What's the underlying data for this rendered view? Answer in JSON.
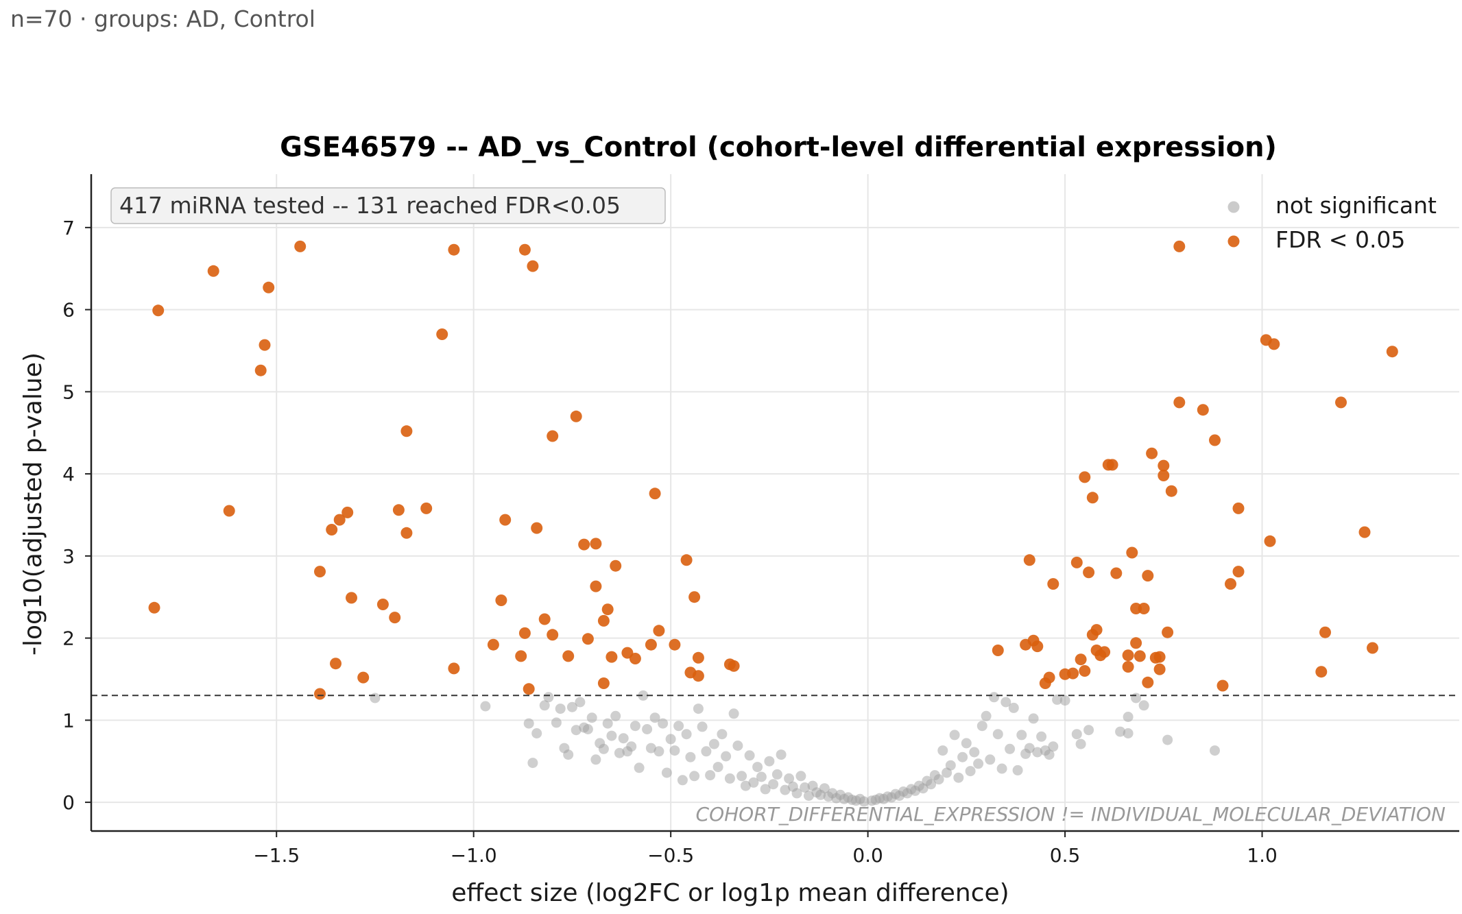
{
  "header": {
    "subtitle": "n=70 · groups: AD, Control"
  },
  "chart_data": {
    "type": "scatter",
    "title": "GSE46579 -- AD_vs_Control (cohort-level differential expression)",
    "xlabel": "effect size (log2FC or log1p mean difference)",
    "ylabel": "-log10(adjusted p-value)",
    "xlim": [
      -1.97,
      1.5
    ],
    "ylim": [
      -0.35,
      7.65
    ],
    "x_ticks": [
      -1.5,
      -1.0,
      -0.5,
      0.0,
      0.5,
      1.0
    ],
    "x_tick_labels": [
      "−1.5",
      "−1.0",
      "−0.5",
      "0.0",
      "0.5",
      "1.0"
    ],
    "y_ticks": [
      0,
      1,
      2,
      3,
      4,
      5,
      6,
      7
    ],
    "y_tick_labels": [
      "0",
      "1",
      "2",
      "3",
      "4",
      "5",
      "6",
      "7"
    ],
    "grid": true,
    "threshold_line": {
      "y": 1.301,
      "style": "dashed"
    },
    "annotation_box": "417 miRNA tested -- 131 reached FDR<0.05",
    "watermark": "COHORT_DIFFERENTIAL_EXPRESSION != INDIVIDUAL_MOLECULAR_DEVIATION",
    "legend": {
      "position": "top-right"
    },
    "series": [
      {
        "name": "not significant",
        "color": "#a0a0a0",
        "points": [
          [
            -1.25,
            1.27
          ],
          [
            -0.97,
            1.17
          ],
          [
            -0.86,
            0.96
          ],
          [
            -0.85,
            0.48
          ],
          [
            -0.84,
            0.84
          ],
          [
            -0.82,
            1.18
          ],
          [
            -0.81,
            1.28
          ],
          [
            -0.79,
            0.97
          ],
          [
            -0.78,
            1.14
          ],
          [
            -0.77,
            0.66
          ],
          [
            -0.76,
            0.58
          ],
          [
            -0.75,
            1.16
          ],
          [
            -0.74,
            0.88
          ],
          [
            -0.73,
            1.22
          ],
          [
            -0.72,
            0.91
          ],
          [
            -0.71,
            0.89
          ],
          [
            -0.7,
            1.03
          ],
          [
            -0.69,
            0.52
          ],
          [
            -0.68,
            0.72
          ],
          [
            -0.67,
            0.65
          ],
          [
            -0.66,
            0.96
          ],
          [
            -0.65,
            0.81
          ],
          [
            -0.64,
            1.05
          ],
          [
            -0.63,
            0.6
          ],
          [
            -0.62,
            0.78
          ],
          [
            -0.61,
            0.62
          ],
          [
            -0.6,
            0.68
          ],
          [
            -0.59,
            0.93
          ],
          [
            -0.58,
            0.42
          ],
          [
            -0.57,
            1.3
          ],
          [
            -0.56,
            0.89
          ],
          [
            -0.55,
            0.66
          ],
          [
            -0.54,
            1.03
          ],
          [
            -0.53,
            0.62
          ],
          [
            -0.52,
            0.96
          ],
          [
            -0.51,
            0.36
          ],
          [
            -0.5,
            0.77
          ],
          [
            -0.49,
            0.63
          ],
          [
            -0.48,
            0.93
          ],
          [
            -0.47,
            0.27
          ],
          [
            -0.46,
            0.83
          ],
          [
            -0.45,
            0.55
          ],
          [
            -0.44,
            0.32
          ],
          [
            -0.43,
            1.14
          ],
          [
            -0.42,
            0.92
          ],
          [
            -0.41,
            0.62
          ],
          [
            -0.4,
            0.33
          ],
          [
            -0.39,
            0.71
          ],
          [
            -0.38,
            0.43
          ],
          [
            -0.37,
            0.83
          ],
          [
            -0.36,
            0.56
          ],
          [
            -0.35,
            0.29
          ],
          [
            -0.34,
            1.08
          ],
          [
            -0.33,
            0.69
          ],
          [
            -0.32,
            0.32
          ],
          [
            -0.31,
            0.2
          ],
          [
            -0.3,
            0.57
          ],
          [
            -0.29,
            0.24
          ],
          [
            -0.28,
            0.43
          ],
          [
            -0.27,
            0.31
          ],
          [
            -0.26,
            0.16
          ],
          [
            -0.25,
            0.5
          ],
          [
            -0.24,
            0.22
          ],
          [
            -0.23,
            0.34
          ],
          [
            -0.22,
            0.58
          ],
          [
            -0.21,
            0.15
          ],
          [
            -0.2,
            0.29
          ],
          [
            -0.19,
            0.19
          ],
          [
            -0.18,
            0.11
          ],
          [
            -0.17,
            0.32
          ],
          [
            -0.16,
            0.18
          ],
          [
            -0.15,
            0.08
          ],
          [
            -0.14,
            0.2
          ],
          [
            -0.13,
            0.12
          ],
          [
            -0.12,
            0.09
          ],
          [
            -0.11,
            0.17
          ],
          [
            -0.1,
            0.07
          ],
          [
            -0.09,
            0.11
          ],
          [
            -0.08,
            0.05
          ],
          [
            -0.07,
            0.09
          ],
          [
            -0.06,
            0.04
          ],
          [
            -0.05,
            0.06
          ],
          [
            -0.04,
            0.03
          ],
          [
            -0.03,
            0.02
          ],
          [
            -0.02,
            0.04
          ],
          [
            -0.01,
            0.01
          ],
          [
            0.01,
            0.02
          ],
          [
            0.02,
            0.03
          ],
          [
            0.03,
            0.05
          ],
          [
            0.04,
            0.04
          ],
          [
            0.05,
            0.07
          ],
          [
            0.06,
            0.06
          ],
          [
            0.07,
            0.1
          ],
          [
            0.08,
            0.08
          ],
          [
            0.09,
            0.13
          ],
          [
            0.1,
            0.11
          ],
          [
            0.11,
            0.16
          ],
          [
            0.12,
            0.14
          ],
          [
            0.13,
            0.2
          ],
          [
            0.14,
            0.17
          ],
          [
            0.15,
            0.26
          ],
          [
            0.16,
            0.22
          ],
          [
            0.17,
            0.33
          ],
          [
            0.18,
            0.28
          ],
          [
            0.19,
            0.63
          ],
          [
            0.2,
            0.36
          ],
          [
            0.21,
            0.45
          ],
          [
            0.22,
            0.82
          ],
          [
            0.23,
            0.3
          ],
          [
            0.24,
            0.55
          ],
          [
            0.25,
            0.72
          ],
          [
            0.26,
            0.38
          ],
          [
            0.27,
            0.61
          ],
          [
            0.28,
            0.47
          ],
          [
            0.29,
            0.93
          ],
          [
            0.3,
            1.05
          ],
          [
            0.31,
            0.52
          ],
          [
            0.32,
            1.28
          ],
          [
            0.33,
            0.83
          ],
          [
            0.34,
            0.41
          ],
          [
            0.35,
            1.22
          ],
          [
            0.36,
            0.65
          ],
          [
            0.37,
            1.15
          ],
          [
            0.38,
            0.39
          ],
          [
            0.39,
            0.82
          ],
          [
            0.4,
            0.59
          ],
          [
            0.41,
            0.66
          ],
          [
            0.42,
            1.02
          ],
          [
            0.43,
            0.61
          ],
          [
            0.44,
            0.8
          ],
          [
            0.45,
            0.63
          ],
          [
            0.46,
            0.58
          ],
          [
            0.47,
            0.68
          ],
          [
            0.48,
            1.25
          ],
          [
            0.5,
            1.24
          ],
          [
            0.53,
            0.83
          ],
          [
            0.56,
            0.88
          ],
          [
            0.64,
            0.86
          ],
          [
            0.66,
            0.84
          ],
          [
            0.68,
            1.27
          ],
          [
            0.7,
            1.18
          ],
          [
            0.76,
            0.76
          ],
          [
            0.88,
            0.63
          ],
          [
            0.66,
            1.04
          ],
          [
            0.54,
            0.71
          ]
        ]
      },
      {
        "name": "FDR < 0.05",
        "color": "#d95f0e",
        "points": [
          [
            -1.81,
            2.37
          ],
          [
            -1.8,
            5.99
          ],
          [
            -1.66,
            6.47
          ],
          [
            -1.62,
            3.55
          ],
          [
            -1.54,
            5.26
          ],
          [
            -1.53,
            5.57
          ],
          [
            -1.52,
            6.27
          ],
          [
            -1.44,
            6.77
          ],
          [
            -1.39,
            2.81
          ],
          [
            -1.39,
            1.32
          ],
          [
            -1.36,
            3.32
          ],
          [
            -1.35,
            1.69
          ],
          [
            -1.34,
            3.44
          ],
          [
            -1.32,
            3.53
          ],
          [
            -1.31,
            2.49
          ],
          [
            -1.28,
            1.52
          ],
          [
            -1.23,
            2.41
          ],
          [
            -1.2,
            2.25
          ],
          [
            -1.19,
            3.56
          ],
          [
            -1.17,
            4.52
          ],
          [
            -1.17,
            3.28
          ],
          [
            -1.12,
            3.58
          ],
          [
            -1.08,
            5.7
          ],
          [
            -1.05,
            6.73
          ],
          [
            -1.05,
            1.63
          ],
          [
            -0.95,
            1.92
          ],
          [
            -0.93,
            2.46
          ],
          [
            -0.92,
            3.44
          ],
          [
            -0.88,
            1.78
          ],
          [
            -0.87,
            6.73
          ],
          [
            -0.87,
            2.06
          ],
          [
            -0.86,
            1.38
          ],
          [
            -0.85,
            6.53
          ],
          [
            -0.84,
            3.34
          ],
          [
            -0.82,
            2.23
          ],
          [
            -0.8,
            4.46
          ],
          [
            -0.8,
            2.04
          ],
          [
            -0.76,
            1.78
          ],
          [
            -0.74,
            4.7
          ],
          [
            -0.72,
            3.14
          ],
          [
            -0.71,
            1.99
          ],
          [
            -0.69,
            3.15
          ],
          [
            -0.69,
            2.63
          ],
          [
            -0.67,
            2.21
          ],
          [
            -0.66,
            2.35
          ],
          [
            -0.67,
            1.45
          ],
          [
            -0.65,
            1.77
          ],
          [
            -0.64,
            2.88
          ],
          [
            -0.61,
            1.82
          ],
          [
            -0.59,
            1.75
          ],
          [
            -0.54,
            3.76
          ],
          [
            -0.53,
            2.09
          ],
          [
            -0.49,
            1.92
          ],
          [
            -0.46,
            2.95
          ],
          [
            -0.45,
            1.58
          ],
          [
            -0.44,
            2.5
          ],
          [
            -0.43,
            1.76
          ],
          [
            -0.43,
            1.54
          ],
          [
            -0.35,
            1.68
          ],
          [
            -0.34,
            1.66
          ],
          [
            0.33,
            1.85
          ],
          [
            0.4,
            1.92
          ],
          [
            0.41,
            2.95
          ],
          [
            0.42,
            1.97
          ],
          [
            0.43,
            1.9
          ],
          [
            0.45,
            1.45
          ],
          [
            0.46,
            1.52
          ],
          [
            0.47,
            2.66
          ],
          [
            0.5,
            1.56
          ],
          [
            0.52,
            1.57
          ],
          [
            0.53,
            2.92
          ],
          [
            0.54,
            1.74
          ],
          [
            0.55,
            1.6
          ],
          [
            0.55,
            3.96
          ],
          [
            0.56,
            2.8
          ],
          [
            0.57,
            3.71
          ],
          [
            0.57,
            2.04
          ],
          [
            0.58,
            2.1
          ],
          [
            0.58,
            1.85
          ],
          [
            0.59,
            1.79
          ],
          [
            0.6,
            1.83
          ],
          [
            0.61,
            4.11
          ],
          [
            0.62,
            4.11
          ],
          [
            0.63,
            2.79
          ],
          [
            0.66,
            1.79
          ],
          [
            0.66,
            1.65
          ],
          [
            0.67,
            3.04
          ],
          [
            0.68,
            2.36
          ],
          [
            0.68,
            1.94
          ],
          [
            0.69,
            1.78
          ],
          [
            0.7,
            2.36
          ],
          [
            0.71,
            2.76
          ],
          [
            0.71,
            1.46
          ],
          [
            0.72,
            4.25
          ],
          [
            0.73,
            1.76
          ],
          [
            0.74,
            1.77
          ],
          [
            0.74,
            1.62
          ],
          [
            0.75,
            4.1
          ],
          [
            0.75,
            3.98
          ],
          [
            0.76,
            2.07
          ],
          [
            0.77,
            3.79
          ],
          [
            0.79,
            4.87
          ],
          [
            0.79,
            6.77
          ],
          [
            0.85,
            4.78
          ],
          [
            0.88,
            4.41
          ],
          [
            0.9,
            1.42
          ],
          [
            0.92,
            2.66
          ],
          [
            0.94,
            2.81
          ],
          [
            0.94,
            3.58
          ],
          [
            1.01,
            5.63
          ],
          [
            1.02,
            3.18
          ],
          [
            1.03,
            5.58
          ],
          [
            1.15,
            1.59
          ],
          [
            1.16,
            2.07
          ],
          [
            1.2,
            4.87
          ],
          [
            1.26,
            3.29
          ],
          [
            1.28,
            1.88
          ],
          [
            1.33,
            5.49
          ],
          [
            -0.55,
            1.92
          ]
        ]
      }
    ]
  }
}
